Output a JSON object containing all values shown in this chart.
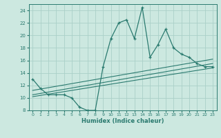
{
  "title": "",
  "xlabel": "Humidex (Indice chaleur)",
  "ylabel": "",
  "background_color": "#cce8e0",
  "line_color": "#2a7a6f",
  "grid_color": "#aad0c8",
  "xlim": [
    -0.5,
    23.5
  ],
  "ylim": [
    8,
    25
  ],
  "yticks": [
    8,
    10,
    12,
    14,
    16,
    18,
    20,
    22,
    24
  ],
  "xticks": [
    0,
    1,
    2,
    3,
    4,
    5,
    6,
    7,
    8,
    9,
    10,
    11,
    12,
    13,
    14,
    15,
    16,
    17,
    18,
    19,
    20,
    21,
    22,
    23
  ],
  "series1_x": [
    0,
    1,
    2,
    3,
    4,
    5,
    6,
    7,
    8,
    9,
    10,
    11,
    12,
    13,
    14,
    15,
    16,
    17,
    18,
    19,
    20,
    21,
    22,
    23
  ],
  "series1_y": [
    13,
    11.5,
    10.5,
    10.5,
    10.5,
    10,
    8.5,
    8,
    8,
    15,
    19.5,
    22,
    22.5,
    19.5,
    24.5,
    16.5,
    18.5,
    21,
    18,
    17,
    16.5,
    15.5,
    15,
    15
  ],
  "series2_x": [
    0,
    23
  ],
  "series2_y": [
    10.5,
    15.5
  ],
  "series3_x": [
    0,
    23
  ],
  "series3_y": [
    10.2,
    14.8
  ],
  "series4_x": [
    0,
    23
  ],
  "series4_y": [
    11.2,
    16.2
  ]
}
